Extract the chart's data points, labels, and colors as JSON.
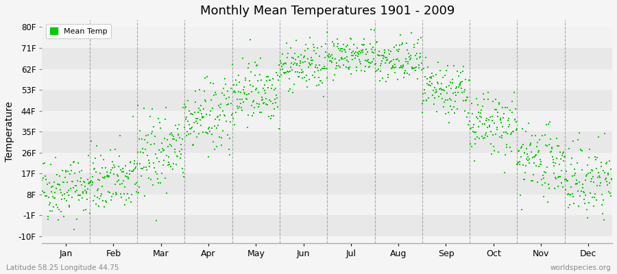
{
  "title": "Monthly Mean Temperatures 1901 - 2009",
  "ylabel": "Temperature",
  "xlabel_bottom_left": "Latitude 58.25 Longitude 44.75",
  "xlabel_bottom_right": "worldspecies.org",
  "dot_color": "#00cc00",
  "background_color": "#f5f5f5",
  "stripe_colors": [
    "#e8e8e8",
    "#f2f2f2"
  ],
  "legend_label": "Mean Temp",
  "yticks_labels": [
    "-10F",
    "-1F",
    "8F",
    "17F",
    "26F",
    "35F",
    "44F",
    "53F",
    "62F",
    "71F",
    "80F"
  ],
  "yticks_values": [
    -10,
    -1,
    8,
    17,
    26,
    35,
    44,
    53,
    62,
    71,
    80
  ],
  "months": [
    "Jan",
    "Feb",
    "Mar",
    "Apr",
    "May",
    "Jun",
    "Jul",
    "Aug",
    "Sep",
    "Oct",
    "Nov",
    "Dec"
  ],
  "month_means_F": [
    11,
    14,
    26,
    41,
    53,
    63,
    68,
    65,
    52,
    37,
    22,
    14
  ],
  "month_stds_F": [
    7,
    7,
    9,
    8,
    7,
    5,
    4,
    5,
    6,
    7,
    7,
    8
  ],
  "n_years": 109,
  "ylim": [
    -13,
    83
  ],
  "seed": 42
}
